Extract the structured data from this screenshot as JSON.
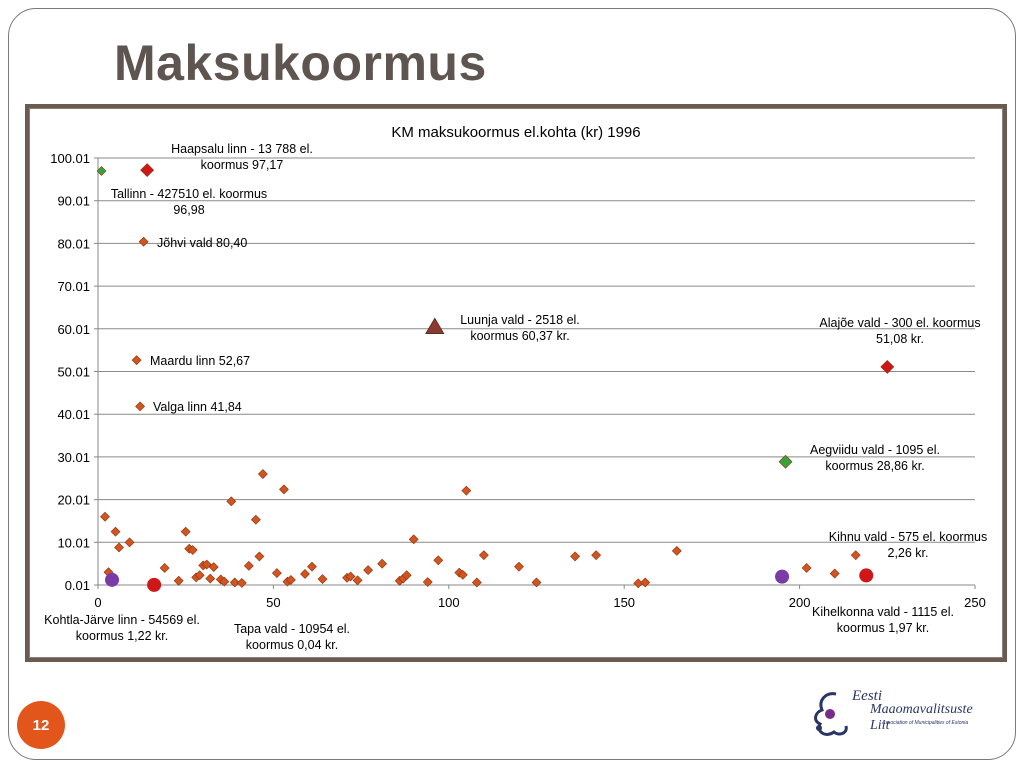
{
  "slide": {
    "title": "Maksukoormus",
    "page_number": "12",
    "logo": {
      "line1": "Eesti",
      "line2": "Maaomavalitsuste Liit",
      "line3": "Association of Municipalities of Estonia"
    }
  },
  "chart_data": {
    "type": "scatter",
    "title": "KM maksukoormus el.kohta (kr) 1996",
    "xlim": [
      0,
      250
    ],
    "ylim": [
      0.01,
      100.01
    ],
    "x_ticks": [
      "0",
      "50",
      "100",
      "150",
      "200",
      "250"
    ],
    "y_ticks": [
      "0.01",
      "10.01",
      "20.01",
      "30.01",
      "40.01",
      "50.01",
      "60.01",
      "70.01",
      "80.01",
      "90.01",
      "100.01"
    ],
    "grid": "horizontal",
    "colors": {
      "default": "#d2541e",
      "red": "#d01717",
      "green": "#3aa23a",
      "purple": "#7a3aa8",
      "triangle": "#8b3a32"
    },
    "points": [
      {
        "x": 2,
        "y": 16
      },
      {
        "x": 3,
        "y": 3
      },
      {
        "x": 5,
        "y": 12.5
      },
      {
        "x": 6,
        "y": 8.8
      },
      {
        "x": 9,
        "y": 10
      },
      {
        "x": 19,
        "y": 4
      },
      {
        "x": 23,
        "y": 1
      },
      {
        "x": 25,
        "y": 12.5
      },
      {
        "x": 26,
        "y": 8.5
      },
      {
        "x": 27,
        "y": 8.2
      },
      {
        "x": 28,
        "y": 1.8
      },
      {
        "x": 29,
        "y": 2.3
      },
      {
        "x": 30,
        "y": 4.6
      },
      {
        "x": 31,
        "y": 4.8
      },
      {
        "x": 32,
        "y": 1.5
      },
      {
        "x": 33,
        "y": 4.2
      },
      {
        "x": 35,
        "y": 1.3
      },
      {
        "x": 36,
        "y": 0.8
      },
      {
        "x": 38,
        "y": 19.6
      },
      {
        "x": 39,
        "y": 0.6
      },
      {
        "x": 41,
        "y": 0.5
      },
      {
        "x": 43,
        "y": 4.5
      },
      {
        "x": 45,
        "y": 15.3
      },
      {
        "x": 46,
        "y": 6.7
      },
      {
        "x": 47,
        "y": 26
      },
      {
        "x": 51,
        "y": 2.8
      },
      {
        "x": 53,
        "y": 22.4
      },
      {
        "x": 54,
        "y": 0.8
      },
      {
        "x": 55,
        "y": 1.2
      },
      {
        "x": 59,
        "y": 2.6
      },
      {
        "x": 61,
        "y": 4.3
      },
      {
        "x": 64,
        "y": 1.4
      },
      {
        "x": 71,
        "y": 1.7
      },
      {
        "x": 72,
        "y": 2
      },
      {
        "x": 74,
        "y": 1.1
      },
      {
        "x": 77,
        "y": 3.5
      },
      {
        "x": 81,
        "y": 5
      },
      {
        "x": 86,
        "y": 1
      },
      {
        "x": 87,
        "y": 1.5
      },
      {
        "x": 88,
        "y": 2.3
      },
      {
        "x": 90,
        "y": 10.7
      },
      {
        "x": 94,
        "y": 0.7
      },
      {
        "x": 97,
        "y": 5.8
      },
      {
        "x": 103,
        "y": 2.9
      },
      {
        "x": 104,
        "y": 2.4
      },
      {
        "x": 105,
        "y": 22.1
      },
      {
        "x": 108,
        "y": 0.6
      },
      {
        "x": 110,
        "y": 7
      },
      {
        "x": 120,
        "y": 4.3
      },
      {
        "x": 125,
        "y": 0.6
      },
      {
        "x": 136,
        "y": 6.7
      },
      {
        "x": 142,
        "y": 7
      },
      {
        "x": 154,
        "y": 0.4
      },
      {
        "x": 156,
        "y": 0.6
      },
      {
        "x": 165,
        "y": 8
      },
      {
        "x": 202,
        "y": 4
      },
      {
        "x": 210,
        "y": 2.7
      },
      {
        "x": 1,
        "y": 96.98,
        "color": "green"
      },
      {
        "x": 14,
        "y": 97.17,
        "color": "red",
        "size": "large"
      },
      {
        "x": 13,
        "y": 80.4
      },
      {
        "x": 11,
        "y": 52.67
      },
      {
        "x": 12,
        "y": 41.84
      },
      {
        "x": 96,
        "y": 60.37,
        "shape": "triangle",
        "color": "triangle"
      },
      {
        "x": 225,
        "y": 51.08,
        "color": "red",
        "size": "large"
      },
      {
        "x": 196,
        "y": 28.86,
        "color": "green",
        "size": "large"
      },
      {
        "x": 216,
        "y": 7
      },
      {
        "x": 4,
        "y": 1.22,
        "shape": "circle",
        "color": "purple"
      },
      {
        "x": 16,
        "y": 0.04,
        "shape": "circle",
        "color": "red"
      },
      {
        "x": 195,
        "y": 1.97,
        "shape": "circle",
        "color": "purple"
      },
      {
        "x": 219,
        "y": 2.26,
        "shape": "circle",
        "color": "red"
      }
    ],
    "annotations": [
      {
        "lines": [
          "Haapsalu linn - 13 788 el.",
          "koormus 97,17"
        ]
      },
      {
        "lines": [
          "Tallinn - 427510 el. koormus",
          "96,98"
        ]
      },
      {
        "lines": [
          "Jõhvi vald 80,40"
        ]
      },
      {
        "lines": [
          "Maardu linn 52,67"
        ]
      },
      {
        "lines": [
          "Valga linn 41,84"
        ]
      },
      {
        "lines": [
          "Luunja vald - 2518 el.",
          "koormus 60,37 kr."
        ]
      },
      {
        "lines": [
          "Alajõe vald - 300 el. koormus",
          "51,08 kr."
        ]
      },
      {
        "lines": [
          "Aegviidu vald - 1095 el.",
          "koormus 28,86 kr."
        ]
      },
      {
        "lines": [
          "Kihnu vald - 575 el. koormus",
          "2,26 kr."
        ]
      },
      {
        "lines": [
          "Kohtla-Järve linn - 54569 el.",
          "koormus 1,22 kr."
        ]
      },
      {
        "lines": [
          "Tapa vald - 10954 el.",
          "koormus 0,04 kr."
        ]
      },
      {
        "lines": [
          "Kihelkonna vald -  1115 el.",
          "koormus 1,97 kr."
        ]
      }
    ]
  }
}
